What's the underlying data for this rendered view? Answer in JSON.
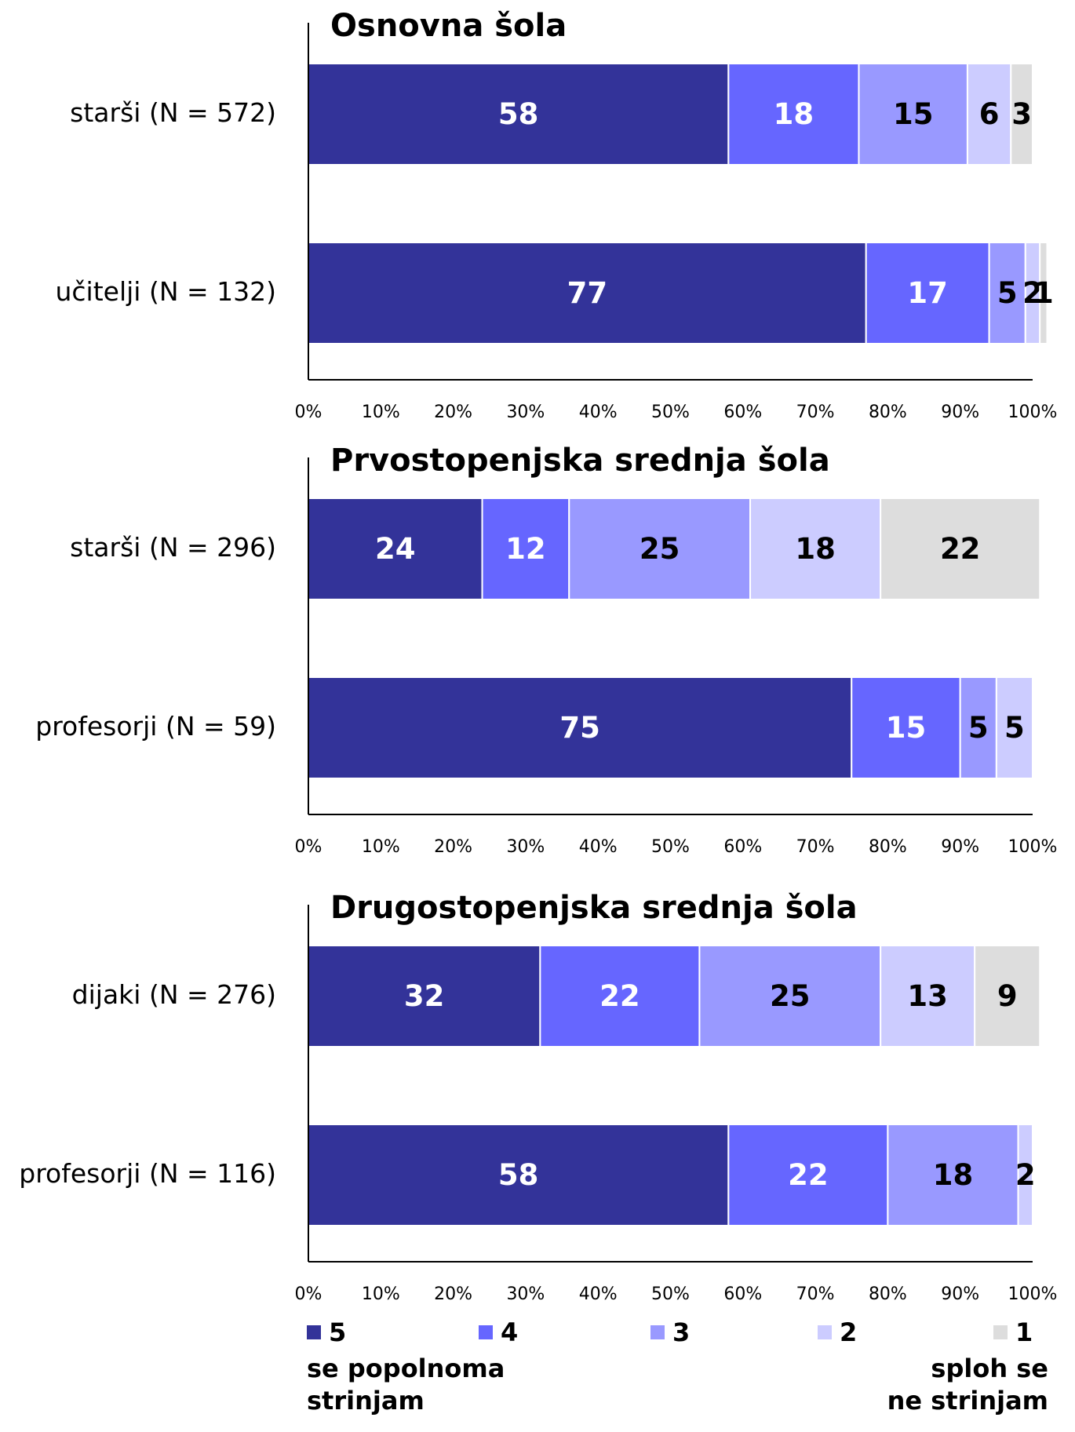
{
  "chart_data": [
    {
      "type": "bar",
      "title": "Osnovna šola",
      "categories": [
        "starši (N = 572)",
        "učitelji (N = 132)"
      ],
      "series": [
        {
          "name": "5",
          "color": "#333399",
          "values": [
            58,
            77
          ]
        },
        {
          "name": "4",
          "color": "#6666ff",
          "values": [
            18,
            17
          ]
        },
        {
          "name": "3",
          "color": "#9999ff",
          "values": [
            15,
            5
          ]
        },
        {
          "name": "2",
          "color": "#ccccff",
          "values": [
            6,
            2
          ]
        },
        {
          "name": "1",
          "color": "#dddddd",
          "values": [
            3,
            1
          ]
        }
      ],
      "xlim": [
        0,
        100
      ],
      "xticks": [
        {
          "value": 0,
          "label": "0%"
        },
        {
          "value": 10,
          "label": "10%"
        },
        {
          "value": 20,
          "label": "20%"
        },
        {
          "value": 30,
          "label": "30%"
        },
        {
          "value": 40,
          "label": "40%"
        },
        {
          "value": 50,
          "label": "50%"
        },
        {
          "value": 60,
          "label": "60%"
        },
        {
          "value": 70,
          "label": "70%"
        },
        {
          "value": 80,
          "label": "80%"
        },
        {
          "value": 90,
          "label": "90%"
        },
        {
          "value": 100,
          "label": "100%"
        }
      ]
    },
    {
      "type": "bar",
      "title": "Prvostopenjska srednja šola",
      "categories": [
        "starši (N = 296)",
        "profesorji (N = 59)"
      ],
      "series": [
        {
          "name": "5",
          "color": "#333399",
          "values": [
            24,
            75
          ]
        },
        {
          "name": "4",
          "color": "#6666ff",
          "values": [
            12,
            15
          ]
        },
        {
          "name": "3",
          "color": "#9999ff",
          "values": [
            25,
            5
          ]
        },
        {
          "name": "2",
          "color": "#ccccff",
          "values": [
            18,
            5
          ]
        },
        {
          "name": "1",
          "color": "#dddddd",
          "values": [
            22,
            null
          ]
        }
      ],
      "xlim": [
        0,
        100
      ],
      "xticks": [
        {
          "value": 0,
          "label": "0%"
        },
        {
          "value": 10,
          "label": "10%"
        },
        {
          "value": 20,
          "label": "20%"
        },
        {
          "value": 30,
          "label": "30%"
        },
        {
          "value": 40,
          "label": "40%"
        },
        {
          "value": 50,
          "label": "50%"
        },
        {
          "value": 60,
          "label": "60%"
        },
        {
          "value": 70,
          "label": "70%"
        },
        {
          "value": 80,
          "label": "80%"
        },
        {
          "value": 90,
          "label": "90%"
        },
        {
          "value": 100,
          "label": "100%"
        }
      ]
    },
    {
      "type": "bar",
      "title": "Drugostopenjska srednja šola",
      "categories": [
        "dijaki (N = 276)",
        "profesorji (N = 116)"
      ],
      "series": [
        {
          "name": "5",
          "color": "#333399",
          "values": [
            32,
            58
          ]
        },
        {
          "name": "4",
          "color": "#6666ff",
          "values": [
            22,
            22
          ]
        },
        {
          "name": "3",
          "color": "#9999ff",
          "values": [
            25,
            18
          ]
        },
        {
          "name": "2",
          "color": "#ccccff",
          "values": [
            13,
            2
          ]
        },
        {
          "name": "1",
          "color": "#dddddd",
          "values": [
            9,
            null
          ]
        }
      ],
      "xlim": [
        0,
        100
      ],
      "xticks": [
        {
          "value": 0,
          "label": "0%"
        },
        {
          "value": 10,
          "label": "10%"
        },
        {
          "value": 20,
          "label": "20%"
        },
        {
          "value": 30,
          "label": "30%"
        },
        {
          "value": 40,
          "label": "40%"
        },
        {
          "value": 50,
          "label": "50%"
        },
        {
          "value": 60,
          "label": "60%"
        },
        {
          "value": 70,
          "label": "70%"
        },
        {
          "value": 80,
          "label": "80%"
        },
        {
          "value": 90,
          "label": "90%"
        },
        {
          "value": 100,
          "label": "100%"
        }
      ],
      "annotations": [
        [
          "se popolnoma",
          "strinjam"
        ],
        [
          "sploh se",
          "ne strinjam"
        ]
      ]
    }
  ]
}
